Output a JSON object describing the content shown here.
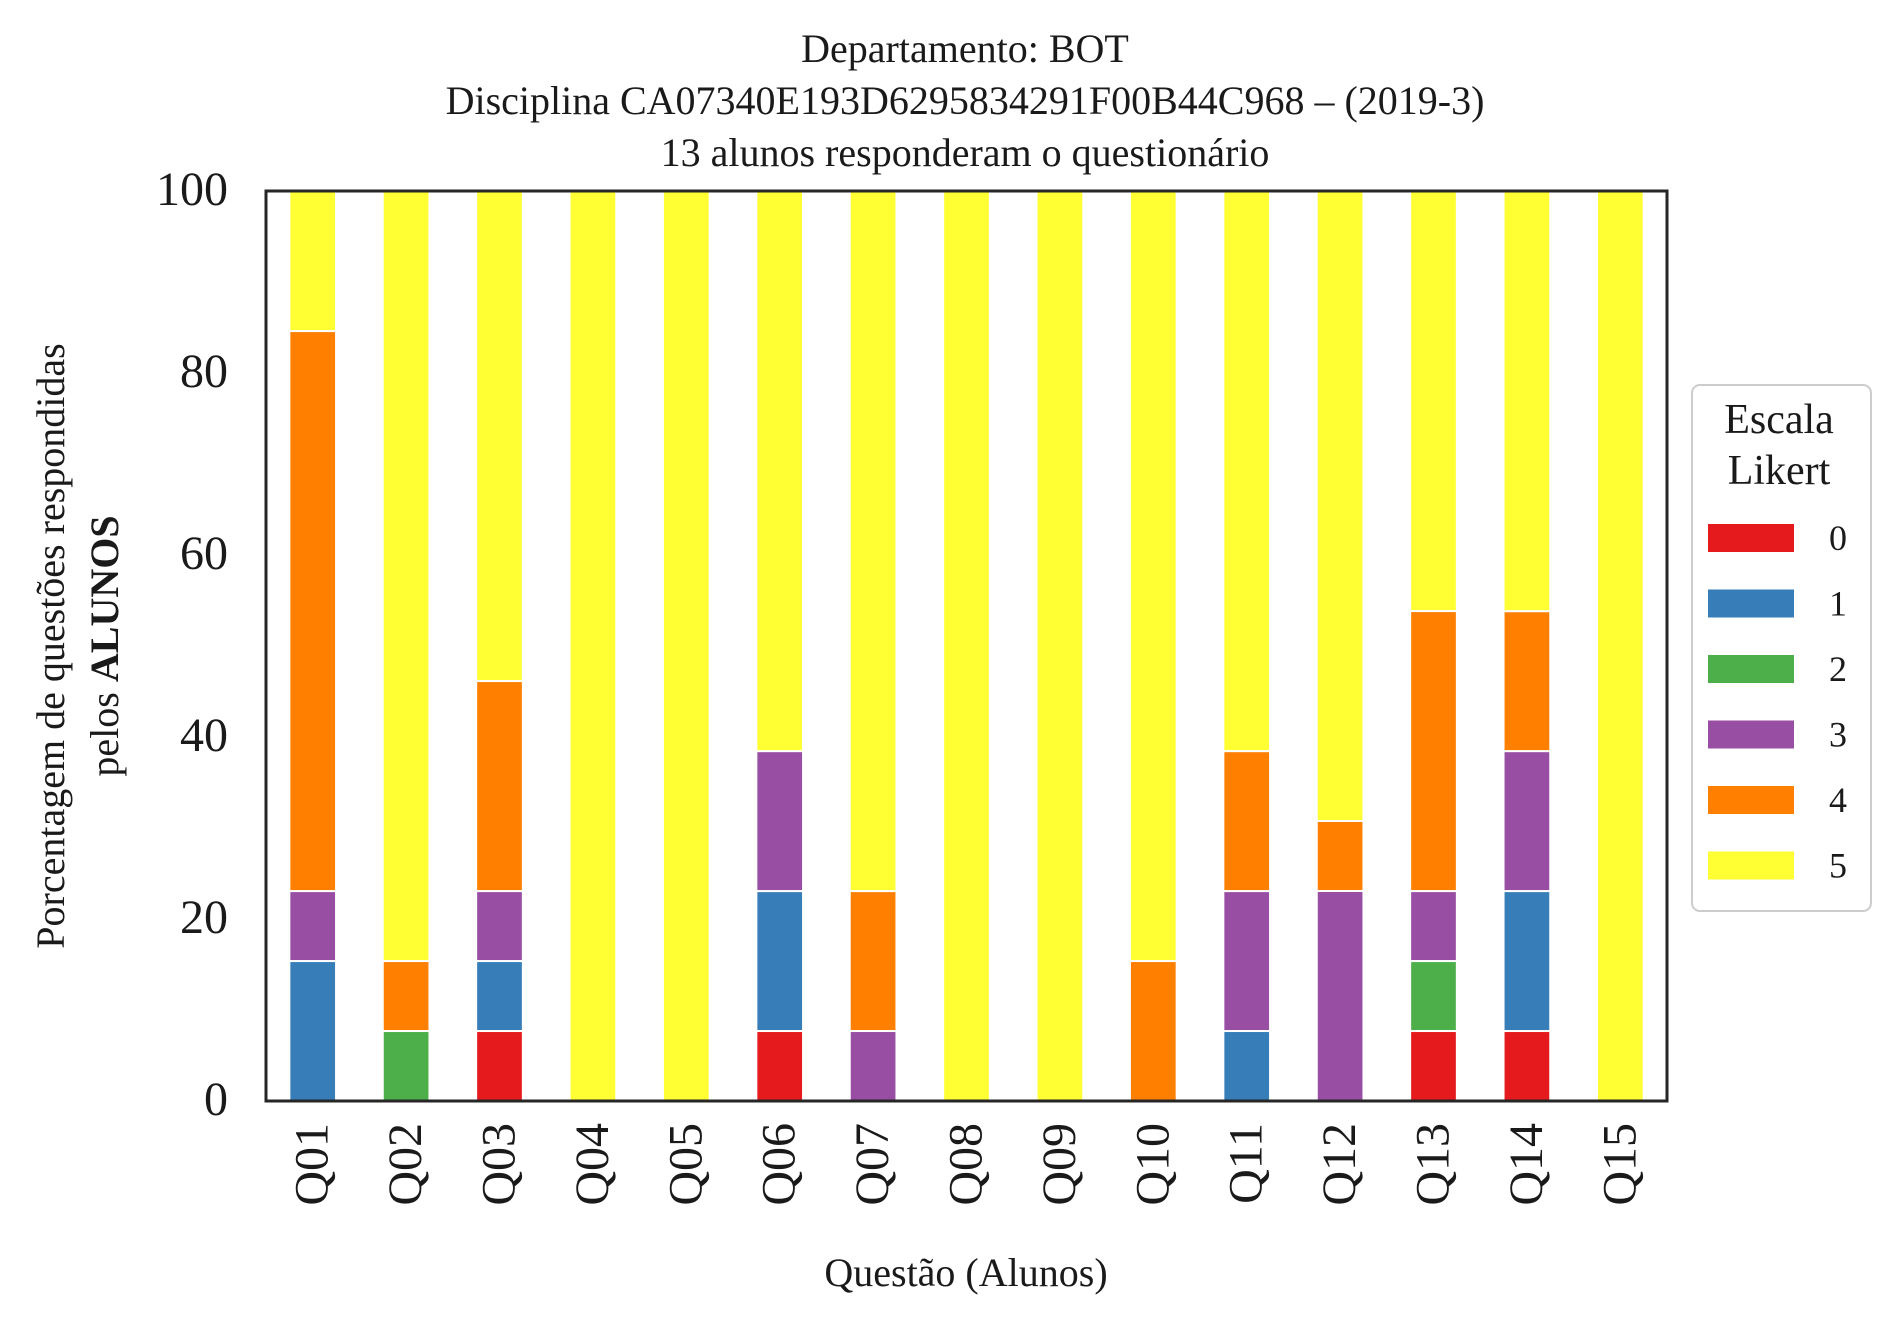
{
  "chart_data": {
    "type": "bar",
    "stacked": true,
    "title_lines": [
      "Departamento: BOT",
      "Disciplina CA07340E193D6295834291F00B44C968 – (2019-3)",
      "13 alunos responderam o questionário"
    ],
    "xlabel": "Questão (Alunos)",
    "ylabel_line1": "Porcentagem de questões respondidas",
    "ylabel_line2_prefix": "pelos ",
    "ylabel_line2_bold": "ALUNOS",
    "ylim": [
      0,
      100
    ],
    "yticks": [
      0,
      20,
      40,
      60,
      80,
      100
    ],
    "grid": false,
    "categories": [
      "Q01",
      "Q02",
      "Q03",
      "Q04",
      "Q05",
      "Q06",
      "Q07",
      "Q08",
      "Q09",
      "Q10",
      "Q11",
      "Q12",
      "Q13",
      "Q14",
      "Q15"
    ],
    "legend": {
      "title_lines": [
        "Escala",
        "Likert"
      ],
      "placement": "right-center outside"
    },
    "series": [
      {
        "name": "0",
        "color": "#e41a1c",
        "values": [
          0,
          0,
          7.69,
          0,
          0,
          7.69,
          0,
          0,
          0,
          0,
          0,
          0,
          7.69,
          7.69,
          0
        ]
      },
      {
        "name": "1",
        "color": "#377eb8",
        "values": [
          15.38,
          0,
          7.69,
          0,
          0,
          15.38,
          0,
          0,
          0,
          0,
          7.69,
          0,
          0,
          15.38,
          0
        ]
      },
      {
        "name": "2",
        "color": "#4daf4a",
        "values": [
          0,
          7.69,
          0,
          0,
          0,
          0,
          0,
          0,
          0,
          0,
          0,
          0,
          7.69,
          0,
          0
        ]
      },
      {
        "name": "3",
        "color": "#984ea3",
        "values": [
          7.69,
          0,
          7.69,
          0,
          0,
          15.38,
          7.69,
          0,
          0,
          0,
          15.38,
          23.08,
          7.69,
          15.38,
          0
        ]
      },
      {
        "name": "4",
        "color": "#ff7f00",
        "values": [
          61.54,
          7.69,
          23.08,
          0,
          0,
          0,
          15.38,
          0,
          0,
          15.38,
          15.38,
          7.69,
          30.77,
          15.38,
          0
        ]
      },
      {
        "name": "5",
        "color": "#ffff33",
        "values": [
          15.38,
          84.62,
          53.85,
          100,
          100,
          61.54,
          76.92,
          100,
          100,
          84.62,
          61.54,
          69.23,
          46.15,
          46.15,
          100
        ]
      }
    ]
  }
}
